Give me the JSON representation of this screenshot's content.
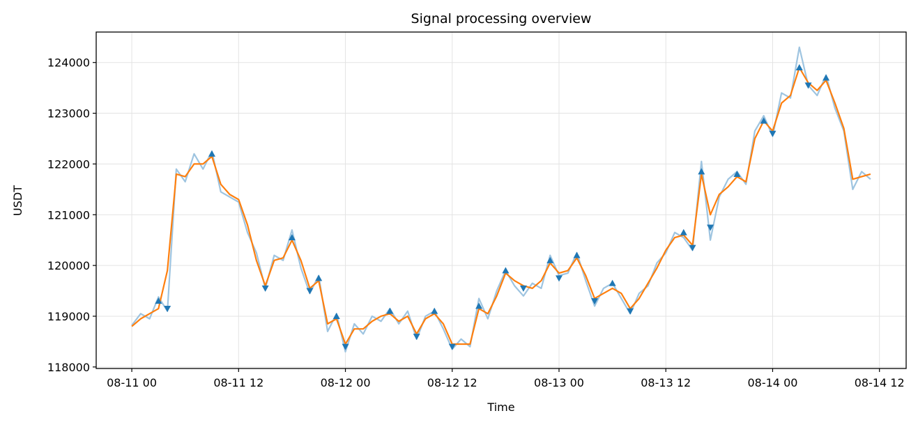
{
  "chart_data": {
    "type": "line",
    "title": "Signal processing overview",
    "xlabel": "Time",
    "ylabel": "USDT",
    "x": [
      "08-11 00",
      "08-11 01",
      "08-11 02",
      "08-11 03",
      "08-11 04",
      "08-11 05",
      "08-11 06",
      "08-11 07",
      "08-11 08",
      "08-11 09",
      "08-11 10",
      "08-11 11",
      "08-11 12",
      "08-11 13",
      "08-11 14",
      "08-11 15",
      "08-11 16",
      "08-11 17",
      "08-11 18",
      "08-11 19",
      "08-11 20",
      "08-11 21",
      "08-11 22",
      "08-11 23",
      "08-12 00",
      "08-12 01",
      "08-12 02",
      "08-12 03",
      "08-12 04",
      "08-12 05",
      "08-12 06",
      "08-12 07",
      "08-12 08",
      "08-12 09",
      "08-12 10",
      "08-12 11",
      "08-12 12",
      "08-12 13",
      "08-12 14",
      "08-12 15",
      "08-12 16",
      "08-12 17",
      "08-12 18",
      "08-12 19",
      "08-12 20",
      "08-12 21",
      "08-12 22",
      "08-12 23",
      "08-13 00",
      "08-13 01",
      "08-13 02",
      "08-13 03",
      "08-13 04",
      "08-13 05",
      "08-13 06",
      "08-13 07",
      "08-13 08",
      "08-13 09",
      "08-13 10",
      "08-13 11",
      "08-13 12",
      "08-13 13",
      "08-13 14",
      "08-13 15",
      "08-13 16",
      "08-13 17",
      "08-13 18",
      "08-13 19",
      "08-13 20",
      "08-13 21",
      "08-13 22",
      "08-13 23",
      "08-14 00",
      "08-14 01",
      "08-14 02",
      "08-14 03",
      "08-14 04",
      "08-14 05",
      "08-14 06",
      "08-14 07",
      "08-14 08",
      "08-14 09",
      "08-14 10",
      "08-14 11"
    ],
    "series": [
      {
        "color": "#9ec4e0",
        "width": 2.2,
        "values": [
          118820,
          119050,
          118950,
          119380,
          119100,
          121900,
          121650,
          122200,
          121900,
          122250,
          121450,
          121350,
          121250,
          120650,
          120250,
          119550,
          120200,
          120100,
          120700,
          119950,
          119450,
          119800,
          118700,
          119050,
          118300,
          118850,
          118650,
          119000,
          118900,
          119150,
          118850,
          119100,
          118550,
          119000,
          119100,
          118750,
          118350,
          118550,
          118400,
          119350,
          118950,
          119500,
          119900,
          119600,
          119400,
          119650,
          119550,
          120200,
          119800,
          119850,
          120250,
          119700,
          119200,
          119550,
          119650,
          119350,
          119050,
          119450,
          119600,
          120050,
          120250,
          120650,
          120550,
          120300,
          122050,
          120500,
          121350,
          121700,
          121850,
          121600,
          122650,
          122950,
          122550,
          123400,
          123300,
          124300,
          123550,
          123350,
          123750,
          123100,
          122650,
          121500,
          121850,
          121700
        ]
      },
      {
        "color": "#ff7f0e",
        "width": 2.2,
        "values": [
          118800,
          118950,
          119050,
          119150,
          119900,
          121800,
          121750,
          122000,
          122000,
          122150,
          121600,
          121400,
          121300,
          120800,
          120100,
          119600,
          120100,
          120150,
          120500,
          120100,
          119550,
          119700,
          118850,
          118950,
          118450,
          118750,
          118750,
          118900,
          119000,
          119050,
          118900,
          119000,
          118650,
          118950,
          119050,
          118850,
          118450,
          118450,
          118450,
          119150,
          119050,
          119400,
          119850,
          119700,
          119600,
          119550,
          119700,
          120050,
          119850,
          119900,
          120150,
          119800,
          119350,
          119450,
          119550,
          119450,
          119150,
          119350,
          119650,
          119950,
          120300,
          120550,
          120600,
          120400,
          121800,
          121000,
          121400,
          121550,
          121750,
          121650,
          122500,
          122850,
          122650,
          123200,
          123350,
          123900,
          123600,
          123450,
          123650,
          123200,
          122700,
          121700,
          121750,
          121800
        ]
      },
      {
        "color": "#1f77b4",
        "marker": "^",
        "values": [
          null,
          null,
          null,
          119300,
          null,
          null,
          null,
          null,
          null,
          122200,
          null,
          null,
          null,
          null,
          null,
          null,
          null,
          null,
          120550,
          null,
          null,
          119750,
          null,
          119000,
          null,
          null,
          null,
          null,
          null,
          119100,
          null,
          null,
          null,
          null,
          119100,
          null,
          null,
          null,
          null,
          119200,
          null,
          null,
          119900,
          null,
          null,
          null,
          null,
          120100,
          null,
          null,
          120200,
          null,
          null,
          null,
          119650,
          null,
          null,
          null,
          null,
          null,
          null,
          null,
          120650,
          null,
          121850,
          null,
          null,
          null,
          121800,
          null,
          null,
          122850,
          null,
          null,
          null,
          123900,
          null,
          null,
          123700,
          null,
          null,
          null,
          null,
          null
        ]
      },
      {
        "color": "#1f77b4",
        "marker": "v",
        "values": [
          null,
          null,
          null,
          null,
          119150,
          null,
          null,
          null,
          null,
          null,
          null,
          null,
          null,
          null,
          null,
          119550,
          null,
          null,
          null,
          null,
          119500,
          null,
          null,
          null,
          118400,
          null,
          null,
          null,
          null,
          null,
          null,
          null,
          118600,
          null,
          null,
          null,
          118400,
          null,
          null,
          null,
          null,
          null,
          null,
          null,
          119550,
          null,
          null,
          null,
          119750,
          null,
          null,
          null,
          119300,
          null,
          null,
          null,
          119100,
          null,
          null,
          null,
          null,
          null,
          null,
          120350,
          null,
          120750,
          null,
          null,
          null,
          null,
          null,
          null,
          122600,
          null,
          null,
          null,
          123550,
          null,
          null,
          null,
          null,
          null,
          null,
          null
        ]
      }
    ],
    "xlim": [
      "08-10 20",
      "08-14 15"
    ],
    "xticks": [
      "08-11 00",
      "08-11 12",
      "08-12 00",
      "08-12 12",
      "08-13 00",
      "08-13 12",
      "08-14 00",
      "08-14 12"
    ],
    "ylim": [
      117970,
      124600
    ],
    "yticks": [
      118000,
      119000,
      120000,
      121000,
      122000,
      123000,
      124000
    ],
    "grid": true
  }
}
